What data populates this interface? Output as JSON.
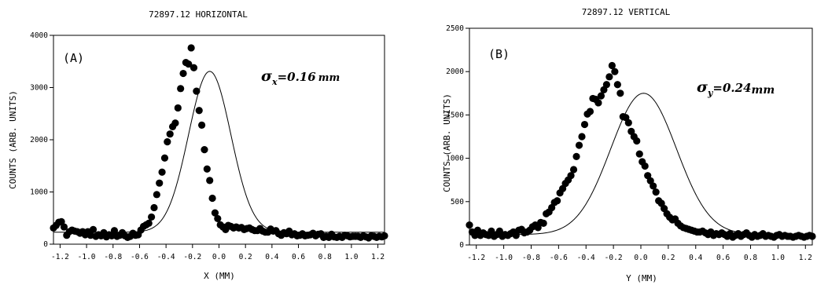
{
  "chart_data": [
    {
      "type": "scatter",
      "title": "72897.12 HORIZONTAL",
      "panel_label": "(A)",
      "annotation": {
        "symbol": "σ",
        "subscript": "x",
        "text": "=0.16",
        "unit": "mm"
      },
      "xlabel": "X (MM)",
      "ylabel": "COUNTS (ARB. UNITS)",
      "xlim": [
        -1.25,
        1.25
      ],
      "ylim": [
        0,
        4000
      ],
      "xticks": [
        -1.2,
        -1.0,
        -0.8,
        -0.6,
        -0.4,
        -0.2,
        0.0,
        0.2,
        0.4,
        0.6,
        0.8,
        1.0,
        1.2
      ],
      "xtick_labels": [
        "-1.2",
        "-1.0",
        "-0.8",
        "-0.6",
        "-0.4",
        "-0.2",
        "0.0",
        "0.2",
        "0.4",
        "0.6",
        "0.8",
        "1.0",
        "1.2"
      ],
      "yticks": [
        0,
        1000,
        2000,
        3000,
        4000
      ],
      "ytick_labels": [
        "0",
        "1000",
        "2000",
        "3000",
        "4000"
      ],
      "grid": false,
      "series": [
        {
          "kind": "points",
          "x": [
            -1.25,
            -1.23,
            -1.21,
            -1.19,
            -1.17,
            -1.15,
            -1.13,
            -1.11,
            -1.09,
            -1.07,
            -1.05,
            -1.03,
            -1.01,
            -0.99,
            -0.97,
            -0.95,
            -0.93,
            -0.91,
            -0.89,
            -0.87,
            -0.85,
            -0.83,
            -0.81,
            -0.79,
            -0.77,
            -0.75,
            -0.73,
            -0.71,
            -0.69,
            -0.67,
            -0.65,
            -0.63,
            -0.61,
            -0.59,
            -0.57,
            -0.55,
            -0.53,
            -0.51,
            -0.49,
            -0.47,
            -0.45,
            -0.43,
            -0.41,
            -0.39,
            -0.37,
            -0.35,
            -0.33,
            -0.31,
            -0.29,
            -0.27,
            -0.25,
            -0.23,
            -0.21,
            -0.19,
            -0.17,
            -0.15,
            -0.13,
            -0.11,
            -0.09,
            -0.07,
            -0.05,
            -0.03,
            -0.01,
            0.01,
            0.03,
            0.05,
            0.07,
            0.09,
            0.11,
            0.13,
            0.15,
            0.17,
            0.19,
            0.21,
            0.23,
            0.25,
            0.27,
            0.29,
            0.31,
            0.33,
            0.35,
            0.37,
            0.39,
            0.41,
            0.43,
            0.45,
            0.47,
            0.49,
            0.51,
            0.53,
            0.55,
            0.57,
            0.59,
            0.61,
            0.63,
            0.65,
            0.67,
            0.69,
            0.71,
            0.73,
            0.75,
            0.77,
            0.79,
            0.81,
            0.83,
            0.85,
            0.87,
            0.89,
            0.91,
            0.93,
            0.95,
            0.97,
            0.99,
            1.01,
            1.03,
            1.05,
            1.07,
            1.09,
            1.11,
            1.13,
            1.15,
            1.17,
            1.19,
            1.21,
            1.23,
            1.25
          ],
          "y": [
            310,
            360,
            420,
            430,
            330,
            170,
            240,
            270,
            250,
            240,
            210,
            240,
            180,
            240,
            170,
            280,
            150,
            180,
            160,
            220,
            140,
            180,
            160,
            260,
            150,
            170,
            220,
            160,
            130,
            150,
            210,
            170,
            180,
            270,
            340,
            370,
            400,
            520,
            700,
            950,
            1170,
            1380,
            1650,
            1960,
            2110,
            2250,
            2320,
            2610,
            2980,
            3270,
            3480,
            3450,
            3760,
            3380,
            2930,
            2560,
            2280,
            1810,
            1440,
            1220,
            880,
            600,
            490,
            370,
            330,
            280,
            360,
            340,
            310,
            330,
            310,
            320,
            280,
            300,
            310,
            280,
            260,
            260,
            300,
            250,
            230,
            230,
            290,
            250,
            260,
            200,
            170,
            220,
            200,
            250,
            180,
            200,
            160,
            170,
            200,
            160,
            170,
            180,
            210,
            160,
            190,
            200,
            130,
            150,
            130,
            190,
            140,
            130,
            150,
            130,
            170,
            160,
            140,
            150,
            150,
            150,
            130,
            160,
            140,
            120,
            160,
            150,
            130,
            150,
            140,
            160
          ]
        },
        {
          "kind": "fit",
          "form": "gaussian",
          "baseline": 230,
          "amplitude": 3080,
          "center": -0.07,
          "sigma": 0.16
        }
      ]
    },
    {
      "type": "scatter",
      "title": "72897.12 VERTICAL",
      "panel_label": "(B)",
      "annotation": {
        "symbol": "σ",
        "subscript": "y",
        "text": "=0.24",
        "unit": "mm"
      },
      "xlabel": "Y (MM)",
      "ylabel": "COUNTS (ARB. UNITS)",
      "xlim": [
        -1.25,
        1.25
      ],
      "ylim": [
        0,
        2500
      ],
      "xticks": [
        -1.2,
        -1.0,
        -0.8,
        -0.6,
        -0.4,
        -0.2,
        0.0,
        0.2,
        0.4,
        0.6,
        0.8,
        1.0,
        1.2
      ],
      "xtick_labels": [
        "-1.2",
        "-1.0",
        "-0.8",
        "-0.6",
        "-0.4",
        "-0.2",
        "0.0",
        "0.2",
        "0.4",
        "0.6",
        "0.8",
        "1.0",
        "1.2"
      ],
      "yticks": [
        0,
        500,
        1000,
        1500,
        2000,
        2500
      ],
      "ytick_labels": [
        "0",
        "500",
        "1000",
        "1500",
        "2000",
        "2500"
      ],
      "grid": false,
      "series": [
        {
          "kind": "points",
          "x": [
            -1.25,
            -1.23,
            -1.21,
            -1.19,
            -1.17,
            -1.15,
            -1.13,
            -1.11,
            -1.09,
            -1.07,
            -1.05,
            -1.03,
            -1.01,
            -0.99,
            -0.97,
            -0.95,
            -0.93,
            -0.91,
            -0.89,
            -0.87,
            -0.85,
            -0.83,
            -0.81,
            -0.79,
            -0.77,
            -0.75,
            -0.73,
            -0.71,
            -0.69,
            -0.67,
            -0.65,
            -0.63,
            -0.61,
            -0.59,
            -0.57,
            -0.55,
            -0.53,
            -0.51,
            -0.49,
            -0.47,
            -0.45,
            -0.43,
            -0.41,
            -0.39,
            -0.37,
            -0.35,
            -0.33,
            -0.31,
            -0.29,
            -0.27,
            -0.25,
            -0.23,
            -0.21,
            -0.19,
            -0.17,
            -0.15,
            -0.13,
            -0.11,
            -0.09,
            -0.07,
            -0.05,
            -0.03,
            -0.01,
            0.01,
            0.03,
            0.05,
            0.07,
            0.09,
            0.11,
            0.13,
            0.15,
            0.17,
            0.19,
            0.21,
            0.23,
            0.25,
            0.27,
            0.29,
            0.31,
            0.33,
            0.35,
            0.37,
            0.39,
            0.41,
            0.43,
            0.45,
            0.47,
            0.49,
            0.51,
            0.53,
            0.55,
            0.57,
            0.59,
            0.61,
            0.63,
            0.65,
            0.67,
            0.69,
            0.71,
            0.73,
            0.75,
            0.77,
            0.79,
            0.81,
            0.83,
            0.85,
            0.87,
            0.89,
            0.91,
            0.93,
            0.95,
            0.97,
            0.99,
            1.01,
            1.03,
            1.05,
            1.07,
            1.09,
            1.11,
            1.13,
            1.15,
            1.17,
            1.19,
            1.21,
            1.23,
            1.25
          ],
          "y": [
            230,
            150,
            110,
            170,
            110,
            140,
            120,
            110,
            160,
            100,
            120,
            160,
            100,
            120,
            110,
            130,
            150,
            110,
            170,
            180,
            140,
            150,
            170,
            210,
            230,
            200,
            260,
            250,
            360,
            380,
            430,
            490,
            510,
            600,
            650,
            710,
            750,
            800,
            870,
            1020,
            1150,
            1250,
            1390,
            1510,
            1540,
            1690,
            1680,
            1640,
            1720,
            1790,
            1850,
            1940,
            2070,
            2000,
            1850,
            1750,
            1480,
            1470,
            1410,
            1310,
            1250,
            1200,
            1050,
            960,
            910,
            800,
            740,
            680,
            610,
            510,
            480,
            420,
            360,
            320,
            290,
            300,
            250,
            220,
            200,
            190,
            180,
            170,
            160,
            150,
            150,
            160,
            140,
            120,
            150,
            110,
            130,
            120,
            140,
            120,
            100,
            130,
            90,
            110,
            130,
            100,
            120,
            140,
            110,
            90,
            120,
            100,
            110,
            130,
            100,
            110,
            100,
            90,
            110,
            120,
            100,
            110,
            100,
            100,
            90,
            100,
            110,
            100,
            90,
            100,
            110,
            100
          ]
        },
        {
          "kind": "fit",
          "form": "gaussian",
          "baseline": 120,
          "amplitude": 1630,
          "center": 0.02,
          "sigma": 0.24
        }
      ]
    }
  ]
}
